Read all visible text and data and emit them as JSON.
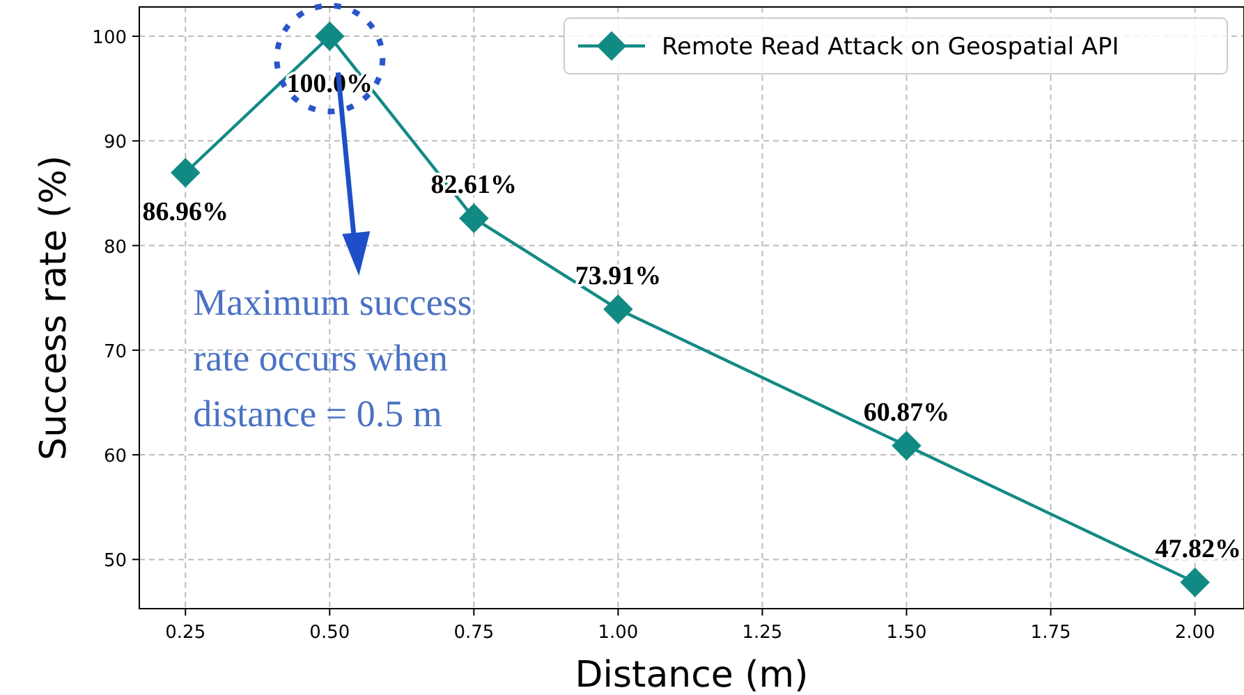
{
  "chart_data": {
    "type": "line",
    "xlabel": "Distance (m)",
    "ylabel": "Success rate (%)",
    "x": [
      0.25,
      0.5,
      0.75,
      1.0,
      1.5,
      2.0
    ],
    "series": [
      {
        "name": "Remote Read Attack on Geospatial API",
        "color": "#128a84",
        "values": [
          86.96,
          100,
          82.61,
          73.91,
          60.87,
          47.82
        ],
        "value_labels": [
          "86.96%",
          "100.0%",
          "82.61%",
          "73.91%",
          "60.87%",
          "47.82%"
        ]
      }
    ],
    "xlim": [
      0.17,
      2.085
    ],
    "xticks": [
      {
        "value": 0.25,
        "label": "0.25"
      },
      {
        "value": 0.5,
        "label": "0.50"
      },
      {
        "value": 0.75,
        "label": "0.75"
      },
      {
        "value": 1.0,
        "label": "1.00"
      },
      {
        "value": 1.25,
        "label": "1.25"
      },
      {
        "value": 1.5,
        "label": "1.50"
      },
      {
        "value": 1.75,
        "label": "1.75"
      },
      {
        "value": 2.0,
        "label": "2.00"
      }
    ],
    "ylim": [
      45.3,
      102.8
    ],
    "yticks": [
      50,
      60,
      70,
      80,
      90,
      100
    ],
    "grid": true,
    "legend": "top right",
    "marker": "diamond",
    "line_style": "solid",
    "annotations": [
      "Maximum success rate occurs when distance = 0.5 m"
    ]
  }
}
